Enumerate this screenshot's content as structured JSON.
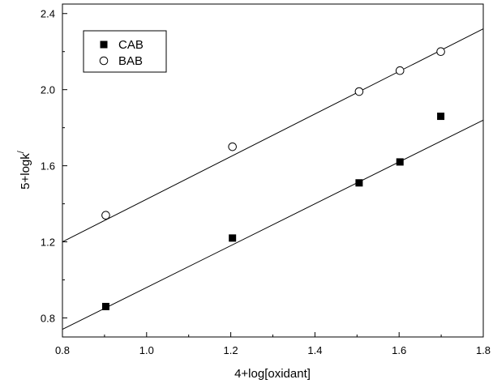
{
  "chart_data": {
    "type": "scatter",
    "title": "",
    "xlabel": "4+log[oxidant]",
    "ylabel": "5+logk",
    "ylabel_superscript": "/",
    "xlim": [
      0.8,
      1.8
    ],
    "ylim": [
      0.7,
      2.45
    ],
    "x_ticks": [
      "0.8",
      "1.0",
      "1.2",
      "1.4",
      "1.6",
      "1.8"
    ],
    "y_ticks": [
      "0.8",
      "1.2",
      "1.6",
      "2.0",
      "2.4"
    ],
    "grid": false,
    "legend_position": "top-left",
    "series": [
      {
        "name": "CAB",
        "marker": "filled-square",
        "color": "#000000",
        "x": [
          0.903,
          1.204,
          1.505,
          1.602,
          1.699
        ],
        "y": [
          0.86,
          1.22,
          1.51,
          1.62,
          1.86
        ],
        "fit_line": {
          "x": [
            0.8,
            1.8
          ],
          "y": [
            0.74,
            1.84
          ]
        }
      },
      {
        "name": "BAB",
        "marker": "open-circle",
        "color": "#000000",
        "x": [
          0.903,
          1.204,
          1.505,
          1.602,
          1.699
        ],
        "y": [
          1.34,
          1.7,
          1.99,
          2.1,
          2.2
        ],
        "fit_line": {
          "x": [
            0.8,
            1.8
          ],
          "y": [
            1.2,
            2.32
          ]
        }
      }
    ]
  }
}
